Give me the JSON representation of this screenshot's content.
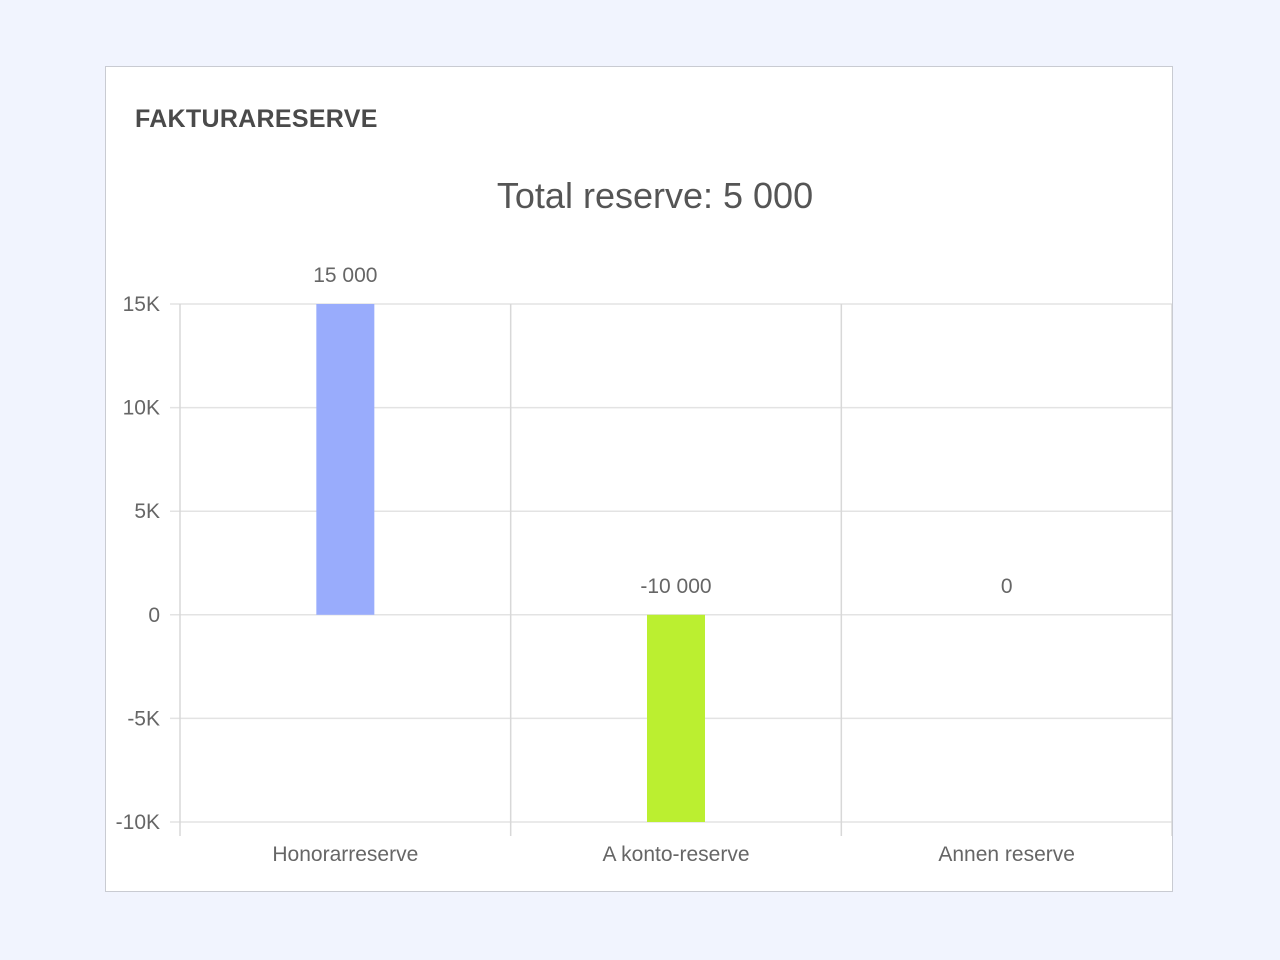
{
  "card": {
    "title": "FAKTURARESERVE"
  },
  "chart_data": {
    "type": "bar",
    "title": "Total reserve: 5 000",
    "categories": [
      "Honorarreserve",
      "A konto-reserve",
      "Annen reserve"
    ],
    "values": [
      15000,
      -10000,
      0
    ],
    "data_labels": [
      "15 000",
      "-10 000",
      "0"
    ],
    "colors": [
      "#99acfc",
      "#bbef30",
      "#cccccc"
    ],
    "ylim": [
      -10000,
      15000
    ],
    "yticks": [
      15000,
      10000,
      5000,
      0,
      -5000,
      -10000
    ],
    "ytick_labels": [
      "15K",
      "10K",
      "5K",
      "0",
      "-5K",
      "-10K"
    ],
    "xlabel": "",
    "ylabel": "",
    "grid": true,
    "legend": "none"
  }
}
